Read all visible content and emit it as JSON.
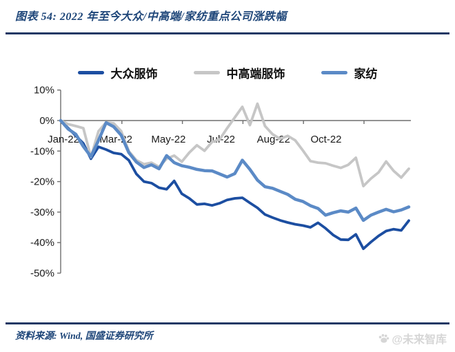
{
  "header": {
    "title": "图表 54:  2022 年至今大众/中高端/家纺重点公司涨跌幅"
  },
  "chart_data": {
    "type": "line",
    "title": "2022 年至今大众/中高端/家纺重点公司涨跌幅",
    "x_tick_labels": [
      "Jan-22",
      "Mar-22",
      "May-22",
      "Jul-22",
      "Aug-22",
      "Oct-22"
    ],
    "y_ticks": [
      {
        "label": "10%",
        "value": 10
      },
      {
        "label": "0%",
        "value": 0
      },
      {
        "label": "-10%",
        "value": -10
      },
      {
        "label": "-20%",
        "value": -20
      },
      {
        "label": "-30%",
        "value": -30
      },
      {
        "label": "-40%",
        "value": -40
      },
      {
        "label": "-50%",
        "value": -50
      }
    ],
    "ylim": [
      -50,
      10
    ],
    "unit": "%",
    "x_frequency_note": "weekly points, Jan-22 through Nov-22",
    "grid": "off",
    "legend_position": "top",
    "series": [
      {
        "name": "大众服饰",
        "color": "#1c4ea1",
        "values": [
          0,
          -2.5,
          -5,
          -7.5,
          -12.5,
          -8.6,
          -9.5,
          -10.6,
          -11,
          -13,
          -17.5,
          -20,
          -20.5,
          -22,
          -22.5,
          -19.8,
          -24,
          -25.5,
          -27.5,
          -27.3,
          -27.8,
          -27.1,
          -26,
          -25.5,
          -25.3,
          -27,
          -28.6,
          -30.8,
          -31.8,
          -32.7,
          -33.4,
          -34,
          -34.4,
          -35,
          -33.5,
          -35.3,
          -37.5,
          -39,
          -39.1,
          -37.3,
          -42,
          -39.8,
          -37.8,
          -36.2,
          -35.6,
          -36,
          -32.8
        ]
      },
      {
        "name": "中高端服饰",
        "color": "#c6c6c6",
        "values": [
          0,
          -1.2,
          -1.8,
          -2.5,
          -12,
          -3.5,
          -0.6,
          -0.9,
          -3.5,
          -10,
          -13,
          -14.3,
          -13.8,
          -15.2,
          -12.5,
          -11.5,
          -13.5,
          -10.5,
          -8.1,
          -9.9,
          -7,
          -6.2,
          -2.5,
          1,
          4.5,
          -1.5,
          5.5,
          -1.8,
          -4.5,
          -6,
          -5,
          -6.5,
          -9.8,
          -13.3,
          -13.8,
          -14,
          -14.8,
          -15.5,
          -14.5,
          -12.2,
          -21.5,
          -19,
          -17,
          -13.4,
          -16.5,
          -18.7,
          -15.8
        ]
      },
      {
        "name": "家纺",
        "color": "#5b8ac6",
        "values": [
          0,
          -2.8,
          -4.5,
          -8.5,
          -11.8,
          -6.5,
          -0.7,
          -2,
          -4.8,
          -10.5,
          -13.6,
          -15.4,
          -14.5,
          -15.8,
          -11.5,
          -13.8,
          -14.8,
          -15.3,
          -16,
          -16.4,
          -16.5,
          -17.5,
          -18.5,
          -17.4,
          -13,
          -16,
          -19.5,
          -21.7,
          -22.2,
          -23.2,
          -24.2,
          -25.8,
          -26.5,
          -27.9,
          -28.8,
          -31,
          -30.2,
          -29.6,
          -30,
          -28.7,
          -32.7,
          -31,
          -30,
          -29.1,
          -29.9,
          -29.3,
          -28.3
        ]
      }
    ]
  },
  "footer": {
    "source": "资料来源: Wind, 国盛证券研究所",
    "watermark": "@未来智库"
  },
  "colors": {
    "accent_navy": "#1f3864",
    "title_blue": "#1e4679",
    "watermark_gray": "#d6d6d6",
    "axis_gray": "#6e6e6e"
  }
}
